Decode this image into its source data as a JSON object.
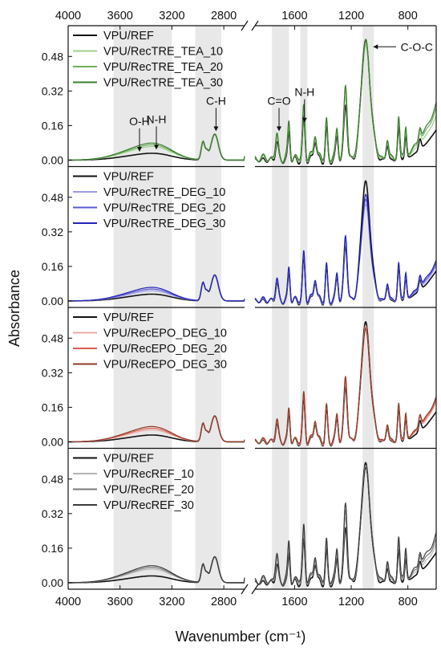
{
  "figure": {
    "xlabel": "Wavenumber (cm⁻¹)",
    "ylabel": "Absorbance",
    "annotations": [
      "O-H",
      "N-H",
      "C-H",
      "C=O",
      "N-H",
      "C-O-C"
    ]
  },
  "chart_data": {
    "type": "line",
    "xaxis": {
      "reversed": true,
      "left_range": [
        4000,
        2640
      ],
      "right_range": [
        1880,
        600
      ],
      "broken": true,
      "ticks": [
        4000,
        3600,
        3200,
        2800,
        1600,
        1200,
        800
      ],
      "tick_labels": [
        "4000",
        "3600",
        "3200",
        "2800",
        "1600",
        "1200",
        "800"
      ]
    },
    "yaxis": {
      "ylim": [
        -0.03,
        0.6
      ],
      "ticks": [
        0.0,
        0.16,
        0.32,
        0.48
      ],
      "tick_labels": [
        "0.00",
        "0.16",
        "0.32",
        "0.48"
      ]
    },
    "highlight_bands": [
      [
        3650,
        3200
      ],
      [
        3020,
        2820
      ],
      [
        1760,
        1640
      ],
      [
        1560,
        1510
      ],
      [
        1120,
        1040
      ]
    ],
    "panels": [
      {
        "legend": [
          "VPU/REF",
          "VPU/RecTRE_TEA_10",
          "VPU/RecTRE_TEA_20",
          "VPU/RecTRE_TEA_30"
        ],
        "colors": [
          "#111111",
          "#9fcf8e",
          "#6fae5c",
          "#3b7f2f"
        ],
        "oh_peak": [
          0.02,
          0.04,
          0.045,
          0.05
        ],
        "fp_scale": [
          1.0,
          1.12,
          1.22,
          1.28
        ],
        "coc_peak": [
          0.55,
          0.52,
          0.53,
          0.54
        ],
        "tail_end": [
          0.14,
          0.2,
          0.23,
          0.25
        ],
        "annotations": [
          {
            "text": "O-H",
            "x": 3450,
            "y": 0.035
          },
          {
            "text": "N-H",
            "x": 3320,
            "y": 0.045
          },
          {
            "text": "C-H",
            "x": 2860,
            "y": 0.13
          },
          {
            "text": "C=O",
            "x": 1710,
            "y": 0.13
          },
          {
            "text": "N-H",
            "x": 1530,
            "y": 0.17
          },
          {
            "text": "C-O-C",
            "x": 1080,
            "y": 0.48
          }
        ]
      },
      {
        "legend": [
          "VPU/REF",
          "VPU/RecTRE_DEG_10",
          "VPU/RecTRE_DEG_20",
          "VPU/RecTRE_DEG_30"
        ],
        "colors": [
          "#111111",
          "#9a9ae6",
          "#5a5ad6",
          "#2323b8"
        ],
        "oh_peak": [
          0.02,
          0.03,
          0.035,
          0.04
        ],
        "fp_scale": [
          1.0,
          1.05,
          1.1,
          1.15
        ],
        "coc_peak": [
          0.55,
          0.44,
          0.46,
          0.48
        ],
        "tail_end": [
          0.14,
          0.16,
          0.17,
          0.18
        ],
        "annotations": []
      },
      {
        "legend": [
          "VPU/REF",
          "VPU/RecEPO_DEG_10",
          "VPU/RecEPO_DEG_20",
          "VPU/RecEPO_DEG_30"
        ],
        "colors": [
          "#111111",
          "#e8aaa8",
          "#d9604f",
          "#8e3b2a"
        ],
        "oh_peak": [
          0.02,
          0.035,
          0.04,
          0.045
        ],
        "fp_scale": [
          1.0,
          1.05,
          1.1,
          1.15
        ],
        "coc_peak": [
          0.55,
          0.53,
          0.52,
          0.51
        ],
        "tail_end": [
          0.14,
          0.18,
          0.19,
          0.2
        ],
        "annotations": []
      },
      {
        "legend": [
          "VPU/REF",
          "VPU/RecREF_10",
          "VPU/RecREF_20",
          "VPU/RecREF_30"
        ],
        "colors": [
          "#111111",
          "#b5b5b5",
          "#7a7a7a",
          "#3c3c3c"
        ],
        "oh_peak": [
          0.02,
          0.04,
          0.045,
          0.05
        ],
        "fp_scale": [
          1.0,
          1.15,
          1.25,
          1.35
        ],
        "coc_peak": [
          0.55,
          0.53,
          0.52,
          0.51
        ],
        "tail_end": [
          0.14,
          0.17,
          0.19,
          0.21
        ],
        "annotations": []
      }
    ]
  }
}
